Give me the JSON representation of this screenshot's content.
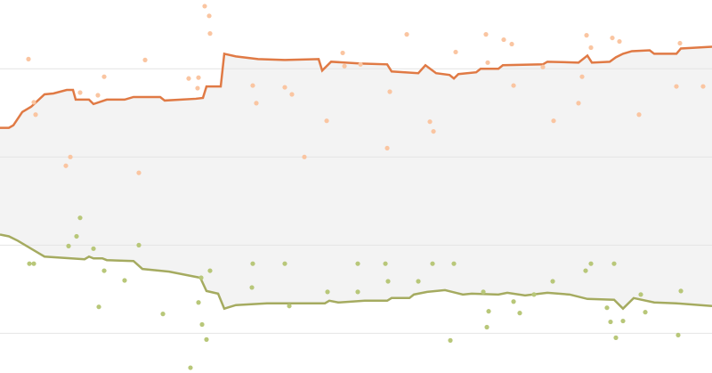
{
  "chart_data": [
    {
      "type": "line",
      "xlim": [
        0,
        100
      ],
      "ylim": [
        -0.45,
        3.78
      ],
      "yticks": [
        0,
        1,
        2,
        3
      ],
      "grid": true,
      "fill_between": true,
      "fill_color": "#f3f3f3",
      "series": [
        {
          "color": "#e07a45",
          "x": [
            0,
            1.25,
            1.88,
            3.13,
            4.38,
            6.25,
            7.5,
            9.38,
            10.25,
            10.63,
            12.5,
            13.13,
            15,
            17.5,
            18.75,
            22.5,
            23.13,
            27.5,
            28.5,
            29,
            31,
            31.5,
            33.13,
            36.25,
            40,
            44.75,
            45.25,
            46.5,
            50.63,
            54.38,
            55,
            58.75,
            59.75,
            61.25,
            63.13,
            63.75,
            64.38,
            66.88,
            67.5,
            70,
            70.63,
            76.25,
            76.88,
            81.25,
            82.5,
            83.13,
            85.63,
            86.5,
            87.5,
            88.75,
            91.25,
            91.88,
            95,
            95.63,
            100
          ],
          "values": [
            2.33,
            2.33,
            2.36,
            2.51,
            2.57,
            2.71,
            2.72,
            2.76,
            2.76,
            2.65,
            2.65,
            2.6,
            2.65,
            2.65,
            2.68,
            2.68,
            2.64,
            2.66,
            2.67,
            2.8,
            2.8,
            3.17,
            3.14,
            3.11,
            3.1,
            3.11,
            2.98,
            3.08,
            3.06,
            3.05,
            2.97,
            2.95,
            3.04,
            2.95,
            2.93,
            2.89,
            2.94,
            2.96,
            3,
            3,
            3.04,
            3.05,
            3.08,
            3.07,
            3.15,
            3.07,
            3.08,
            3.13,
            3.17,
            3.2,
            3.21,
            3.17,
            3.17,
            3.23,
            3.25
          ]
        },
        {
          "color": "#a5ab60",
          "x": [
            0,
            1.25,
            2.5,
            5.63,
            6.25,
            10,
            11.88,
            12.5,
            13.13,
            14.38,
            15,
            18.75,
            20,
            22.5,
            23.75,
            28.13,
            29,
            30.63,
            31.5,
            33.13,
            37.5,
            45.63,
            46.25,
            47.5,
            51.25,
            54.38,
            55,
            57.5,
            58.13,
            60,
            62.5,
            65,
            66.25,
            70,
            71.25,
            73.75,
            76.88,
            80,
            82.5,
            86.25,
            87.5,
            89,
            91.88,
            95,
            100
          ],
          "values": [
            1.12,
            1.1,
            1.05,
            0.9,
            0.87,
            0.85,
            0.84,
            0.87,
            0.85,
            0.85,
            0.83,
            0.82,
            0.73,
            0.71,
            0.7,
            0.63,
            0.48,
            0.45,
            0.28,
            0.32,
            0.34,
            0.34,
            0.37,
            0.35,
            0.37,
            0.37,
            0.4,
            0.4,
            0.44,
            0.47,
            0.49,
            0.44,
            0.45,
            0.44,
            0.46,
            0.43,
            0.46,
            0.44,
            0.39,
            0.38,
            0.28,
            0.4,
            0.35,
            0.34,
            0.31
          ]
        }
      ]
    },
    {
      "type": "scatter",
      "xlim": [
        0,
        100
      ],
      "ylim": [
        -0.45,
        3.78
      ],
      "series": [
        {
          "color": "#fac5a1",
          "x": [
            4,
            28.75,
            29.38,
            29.5,
            20.38,
            14.63,
            11.25,
            13.75,
            4.75,
            5,
            9.88,
            9.25,
            19.5,
            26.5,
            27.88,
            27.75,
            35.5,
            40,
            41,
            36,
            45.88,
            42.75,
            48.13,
            48.38,
            50.63,
            54.38,
            54.75,
            60.38,
            60.88,
            57.13,
            64,
            68.25,
            70.75,
            71.88,
            68.5,
            72.13,
            77.75,
            76.25,
            81.75,
            82.38,
            83,
            86,
            87,
            81.25,
            89.75,
            95.5,
            98.75,
            95
          ],
          "values": [
            3.11,
            3.71,
            3.6,
            3.4,
            3.1,
            2.91,
            2.73,
            2.7,
            2.62,
            2.48,
            2,
            1.9,
            1.82,
            2.89,
            2.9,
            2.78,
            2.81,
            2.79,
            2.71,
            2.61,
            2.41,
            2,
            3.18,
            3.03,
            3.05,
            2.1,
            2.74,
            2.4,
            2.29,
            3.39,
            3.19,
            3.39,
            3.33,
            3.28,
            3.07,
            2.81,
            2.41,
            3.02,
            2.91,
            3.38,
            3.24,
            3.35,
            3.31,
            2.61,
            2.48,
            3.29,
            2.8,
            2.8
          ]
        },
        {
          "color": "#b8c779",
          "x": [
            11.25,
            10.75,
            9.63,
            4.13,
            4.75,
            13.13,
            14.63,
            17.5,
            13.88,
            19.5,
            22.88,
            27.88,
            28.25,
            28.38,
            29,
            26.75,
            29.5,
            35.5,
            40,
            35.38,
            40.63,
            46,
            50.25,
            50.25,
            54.13,
            54.5,
            58.75,
            60.75,
            63.75,
            63.25,
            68.63,
            67.88,
            68.38,
            72.13,
            73,
            77.63,
            75,
            82.25,
            83,
            86.25,
            85.25,
            85.75,
            86.5,
            87.5,
            90.63,
            95.25,
            95.63,
            90
          ],
          "values": [
            1.31,
            1.1,
            0.99,
            0.79,
            0.79,
            0.96,
            0.71,
            0.6,
            0.3,
            1,
            0.22,
            0.35,
            0.63,
            0.1,
            -0.07,
            -0.39,
            0.71,
            0.79,
            0.79,
            0.52,
            0.31,
            0.47,
            0.79,
            0.47,
            0.79,
            0.59,
            0.59,
            0.79,
            0.79,
            -0.08,
            0.25,
            0.47,
            0.07,
            0.36,
            0.23,
            0.59,
            0.44,
            0.71,
            0.79,
            0.79,
            0.29,
            0.13,
            -0.05,
            0.14,
            0.24,
            -0.02,
            0.48,
            0.44
          ]
        }
      ]
    }
  ]
}
